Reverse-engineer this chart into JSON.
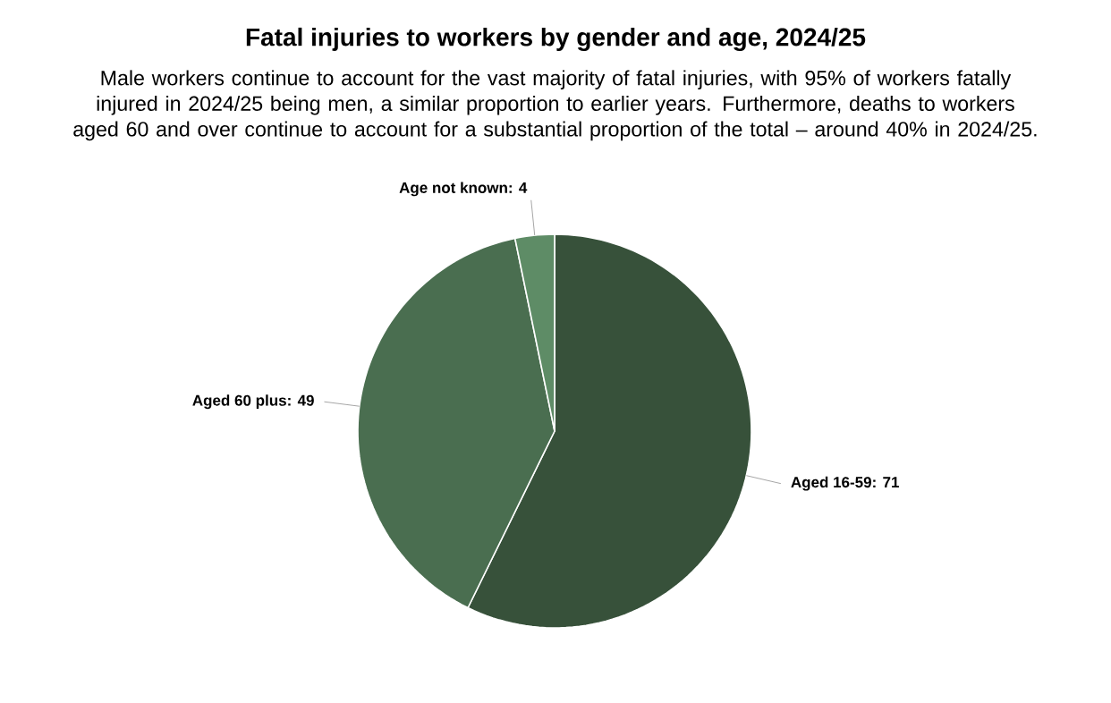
{
  "chart_data": {
    "type": "pie",
    "title": "Fatal injuries to workers by gender and age, 2024/25",
    "subtitle": "Male workers continue to account for the vast majority of fatal injuries, with 95% of workers fatally injured in 2024/25 being men, a similar proportion to earlier years. Furthermore, deaths to workers aged 60 and over continue to account for a substantial proportion of the total – around 40% in 2024/25.",
    "categories": [
      "Aged 16-59: 71",
      "Aged 60 plus: 49",
      "Age not known: 4"
    ],
    "values": [
      71,
      49,
      4
    ],
    "colors": [
      "#37513a",
      "#4a6e50",
      "#5e8c66"
    ]
  }
}
